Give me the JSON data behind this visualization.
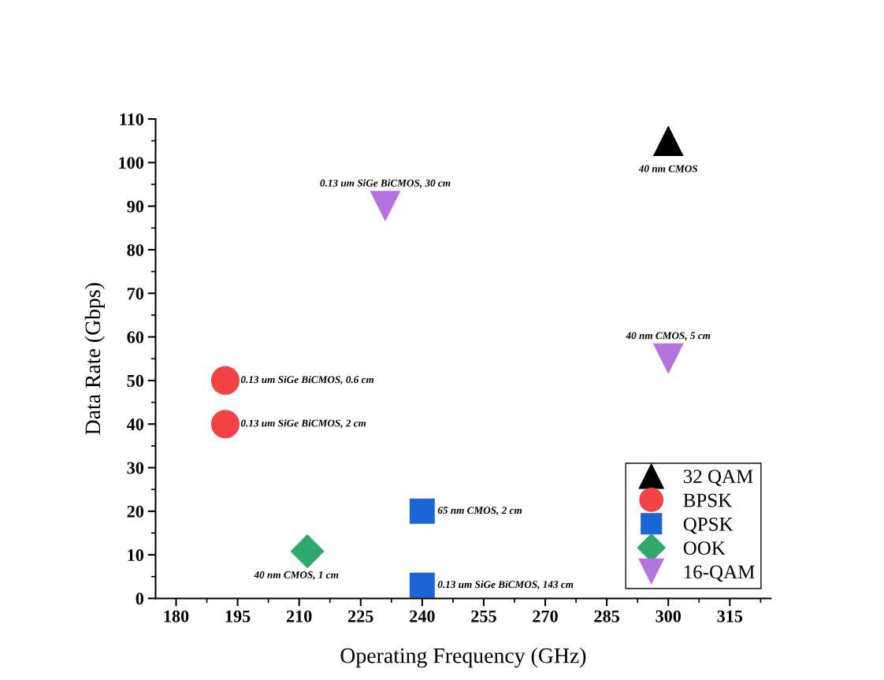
{
  "chart_data": {
    "type": "scatter",
    "xlabel": "Operating Frequency (GHz)",
    "ylabel": "Data Rate (Gbps)",
    "xlim": [
      175,
      325
    ],
    "xticks": [
      180,
      195,
      210,
      225,
      240,
      255,
      270,
      285,
      300,
      315
    ],
    "ylim": [
      0,
      110
    ],
    "yticks": [
      0,
      10,
      20,
      30,
      40,
      50,
      60,
      70,
      80,
      90,
      100,
      110
    ],
    "grid": false,
    "legend": "bottom right",
    "series": [
      {
        "name": "32 QAM",
        "color": "#000000",
        "marker": "triangle",
        "x": [
          300
        ],
        "values": [
          105
        ]
      },
      {
        "name": "BPSK",
        "color": "#f44141",
        "marker": "circle",
        "x": [
          192,
          192
        ],
        "values": [
          50,
          40
        ]
      },
      {
        "name": "QPSK",
        "color": "#1a66d9",
        "marker": "square",
        "x": [
          240,
          240
        ],
        "values": [
          20,
          3
        ]
      },
      {
        "name": "OOK",
        "color": "#2ea86b",
        "marker": "diamond",
        "x": [
          212
        ],
        "values": [
          10.8
        ]
      },
      {
        "name": "16-QAM",
        "color": "#b373e0",
        "marker": "triangle_down",
        "x": [
          231,
          300
        ],
        "values": [
          90,
          55
        ]
      }
    ],
    "annotations": [
      {
        "text": "40 nm CMOS",
        "x": 300,
        "y": 105
      },
      {
        "text": "0.13 um SiGe BiCMOS, 30 cm",
        "x": 231,
        "y": 90
      },
      {
        "text": "40 nm CMOS, 5 cm",
        "x": 300,
        "y": 55
      },
      {
        "text": "0.13 um SiGe BiCMOS, 0.6 cm",
        "x": 192,
        "y": 50
      },
      {
        "text": "0.13 um SiGe BiCMOS, 2 cm",
        "x": 192,
        "y": 40
      },
      {
        "text": "65 nm CMOS, 2 cm",
        "x": 240,
        "y": 20
      },
      {
        "text": "0.13 um SiGe BiCMOS, 143 cm",
        "x": 240,
        "y": 3
      },
      {
        "text": "40 nm CMOS, 1 cm",
        "x": 212,
        "y": 10.8
      }
    ]
  }
}
